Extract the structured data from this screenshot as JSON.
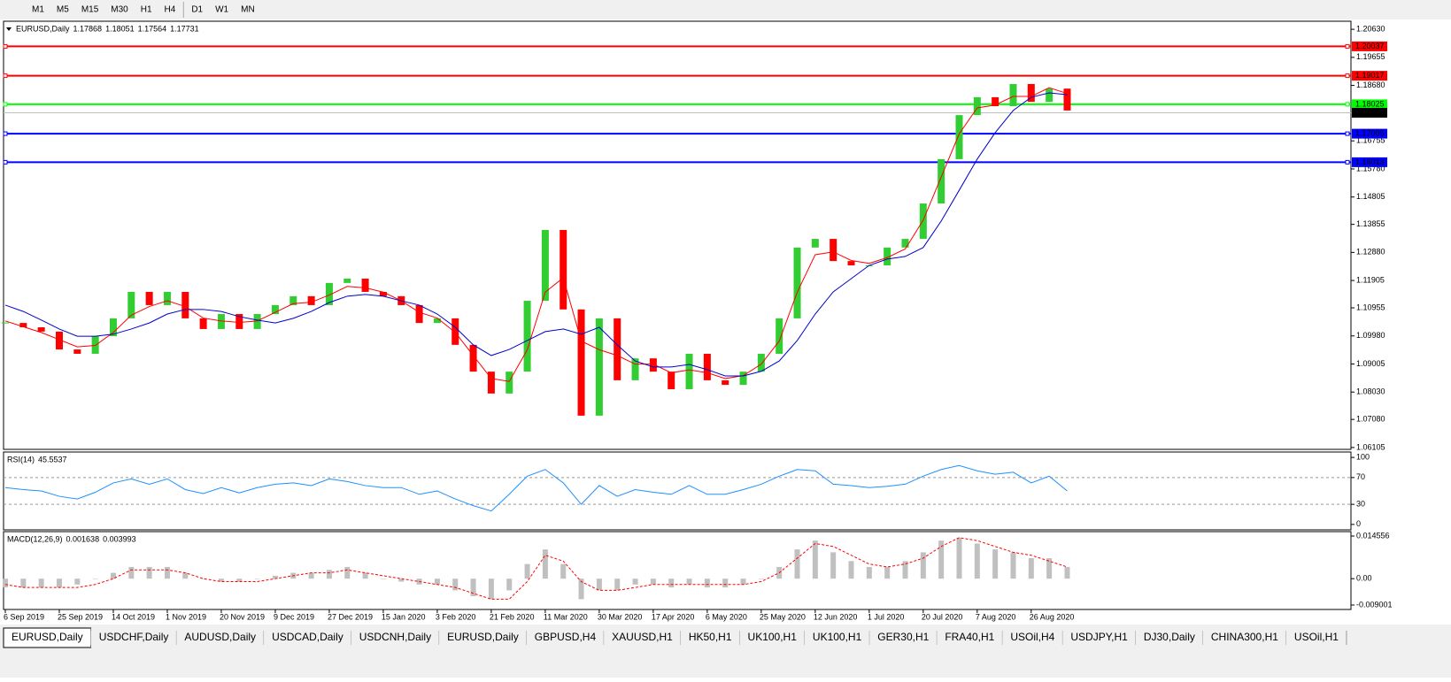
{
  "toolbar": {
    "timeframes": [
      "M1",
      "M5",
      "M15",
      "M30",
      "H1",
      "H4",
      "D1",
      "W1",
      "MN"
    ]
  },
  "chart_data": [
    {
      "type": "candlestick",
      "symbol": "EURUSD,Daily",
      "ohlc": [
        1.17868,
        1.18051,
        1.17564,
        1.17731
      ],
      "categories": [
        "6 Sep 2019",
        null,
        null,
        "25 Sep 2019",
        null,
        null,
        "14 Oct 2019",
        null,
        null,
        "1 Nov 2019",
        null,
        null,
        "20 Nov 2019",
        null,
        null,
        "9 Dec 2019",
        null,
        null,
        "27 Dec 2019",
        null,
        null,
        "15 Jan 2020",
        null,
        null,
        "3 Feb 2020",
        null,
        null,
        "21 Feb 2020",
        null,
        null,
        "11 Mar 2020",
        null,
        null,
        "30 Mar 2020",
        null,
        null,
        "17 Apr 2020",
        null,
        null,
        "6 May 2020",
        null,
        null,
        "25 May 2020",
        null,
        null,
        "12 Jun 2020",
        null,
        null,
        "1 Jul 2020",
        null,
        null,
        "20 Jul 2020",
        null,
        null,
        "7 Aug 2020",
        null,
        null,
        "26 Aug 2020",
        null,
        null
      ],
      "close": [
        1.1043,
        1.1028,
        1.1013,
        1.0951,
        1.0936,
        1.0997,
        1.1059,
        1.1151,
        1.1105,
        1.1151,
        1.1059,
        1.1022,
        1.1074,
        1.1022,
        1.1074,
        1.1105,
        1.1136,
        1.1105,
        1.1182,
        1.1197,
        1.1151,
        1.1136,
        1.1105,
        1.1043,
        1.1059,
        1.0967,
        1.0874,
        1.0798,
        1.0874,
        1.112,
        1.1366,
        1.109,
        1.0721,
        1.1059,
        1.0844,
        1.092,
        1.0874,
        1.0813,
        1.0936,
        1.0844,
        1.0828,
        1.0874,
        1.0936,
        1.1059,
        1.1305,
        1.1335,
        1.1258,
        1.1243,
        1.1243,
        1.1305,
        1.1335,
        1.1458,
        1.1612,
        1.1765,
        1.1827,
        1.1796,
        1.1873,
        1.1811,
        1.1857,
        1.1781
      ],
      "up_color": "#32cd32",
      "down_color": "#ff0000",
      "series": [
        {
          "color": "#ff0000",
          "values": [
            1.105,
            1.103,
            1.101,
            1.0985,
            1.096,
            1.0965,
            1.101,
            1.107,
            1.11,
            1.112,
            1.11,
            1.106,
            1.105,
            1.1045,
            1.105,
            1.108,
            1.111,
            1.1115,
            1.114,
            1.117,
            1.1165,
            1.115,
            1.112,
            1.108,
            1.106,
            1.101,
            1.093,
            1.085,
            1.084,
            1.095,
            1.115,
            1.12,
            1.098,
            1.095,
            1.093,
            1.09,
            1.09,
            1.087,
            1.088,
            1.087,
            1.085,
            1.086,
            1.09,
            1.098,
            1.115,
            1.128,
            1.129,
            1.126,
            1.125,
            1.127,
            1.13,
            1.14,
            1.155,
            1.17,
            1.179,
            1.18,
            1.183,
            1.183,
            1.186,
            1.184
          ]
        },
        {
          "color": "#0000cd",
          "values": [
            1.1105,
            1.1083,
            1.1053,
            1.1022,
            1.0997,
            1.0997,
            1.1004,
            1.1022,
            1.1043,
            1.1074,
            1.109,
            1.109,
            1.1083,
            1.1065,
            1.1053,
            1.1043,
            1.1059,
            1.1083,
            1.1114,
            1.1136,
            1.1142,
            1.1136,
            1.112,
            1.1105,
            1.1074,
            1.1028,
            1.0967,
            1.093,
            1.0951,
            1.0982,
            1.1013,
            1.1022,
            1.1004,
            1.1028,
            1.0967,
            1.0911,
            1.089,
            1.089,
            1.0899,
            1.0881,
            1.0859,
            1.0859,
            1.0875,
            1.0911,
            1.0982,
            1.1074,
            1.1151,
            1.1197,
            1.1243,
            1.1265,
            1.1274,
            1.1305,
            1.1397,
            1.1504,
            1.1612,
            1.1704,
            1.1781,
            1.1827,
            1.1842,
            1.1836
          ]
        }
      ],
      "levels": [
        {
          "value": 1.20037,
          "color": "#ff0000"
        },
        {
          "value": 1.19017,
          "color": "#ff0000"
        },
        {
          "value": 1.18025,
          "color": "#00ff00"
        },
        {
          "value": 1.17005,
          "color": "#0000ff"
        },
        {
          "value": 1.16013,
          "color": "#0000ff"
        }
      ],
      "ylim": [
        1.0604,
        1.2091
      ],
      "yticks": [
        {
          "value": 1.2063,
          "label": "1.20630"
        },
        1.19655,
        {
          "value": 1.1868,
          "label": "1.18680"
        },
        1.16755,
        {
          "value": 1.1578,
          "label": "1.15780"
        },
        1.14805,
        1.13855,
        {
          "value": 1.1288,
          "label": "1.12880"
        },
        1.11905,
        1.10955,
        {
          "value": 1.0998,
          "label": "1.09980"
        },
        1.09005,
        {
          "value": 1.0803,
          "label": "1.08030"
        },
        {
          "value": 1.0708,
          "label": "1.07080"
        },
        1.06105
      ]
    },
    {
      "type": "line",
      "title": "RSI(14)",
      "value": 45.5537,
      "color": "#1e90ff",
      "values": [
        55,
        52,
        50,
        42,
        38,
        48,
        62,
        68,
        60,
        68,
        52,
        46,
        55,
        47,
        55,
        60,
        62,
        58,
        68,
        64,
        58,
        55,
        55,
        45,
        50,
        38,
        28,
        20,
        45,
        72,
        82,
        62,
        30,
        58,
        42,
        52,
        48,
        45,
        58,
        45,
        45,
        52,
        60,
        72,
        82,
        80,
        60,
        58,
        55,
        57,
        60,
        72,
        82,
        88,
        80,
        75,
        78,
        62,
        72,
        50
      ],
      "levels": [
        70,
        30
      ],
      "ylim": [
        -8.1,
        108.1
      ],
      "yticks": [
        100,
        70,
        30,
        0
      ]
    },
    {
      "type": "bar",
      "title": "MACD(12,26,9)",
      "main": 0.001638,
      "signal_value": 0.003993,
      "color": "#c0c0c0",
      "signal_color": "#ff0000",
      "values": [
        -0.003,
        -0.003,
        -0.003,
        -0.003,
        -0.002,
        0,
        0.002,
        0.004,
        0.004,
        0.004,
        0.002,
        0,
        -0.001,
        -0.001,
        0,
        0.001,
        0.002,
        0.002,
        0.003,
        0.004,
        0.002,
        0,
        -0.001,
        -0.002,
        -0.002,
        -0.004,
        -0.006,
        -0.007,
        -0.004,
        0.005,
        0.01,
        0.005,
        -0.007,
        -0.004,
        -0.004,
        -0.002,
        -0.002,
        -0.003,
        -0.002,
        -0.003,
        -0.003,
        -0.002,
        0,
        0.004,
        0.01,
        0.013,
        0.009,
        0.006,
        0.004,
        0.004,
        0.006,
        0.009,
        0.013,
        0.014,
        0.012,
        0.01,
        0.009,
        0.007,
        0.007,
        0.004
      ],
      "signal": [
        -0.002,
        -0.003,
        -0.003,
        -0.003,
        -0.003,
        -0.002,
        0,
        0.003,
        0.003,
        0.003,
        0.002,
        0,
        -0.001,
        -0.001,
        -0.001,
        0,
        0.001,
        0.002,
        0.002,
        0.003,
        0.002,
        0.001,
        0,
        -0.001,
        -0.002,
        -0.003,
        -0.005,
        -0.007,
        -0.007,
        -0.001,
        0.008,
        0.006,
        -0.001,
        -0.004,
        -0.004,
        -0.003,
        -0.002,
        -0.002,
        -0.002,
        -0.002,
        -0.002,
        -0.002,
        -0.001,
        0.002,
        0.007,
        0.012,
        0.011,
        0.008,
        0.005,
        0.004,
        0.005,
        0.007,
        0.011,
        0.014,
        0.013,
        0.011,
        0.009,
        0.008,
        0.006,
        0.004
      ],
      "ylim": [
        -0.01052,
        0.01607
      ],
      "yticks": [
        0.014556,
        {
          "value": 0,
          "label": "0.00"
        },
        -0.009001
      ]
    }
  ],
  "tabs": [
    "EURUSD,Daily",
    "USDCHF,Daily",
    "AUDUSD,Daily",
    "USDCAD,Daily",
    "USDCNH,Daily",
    "EURUSD,Daily",
    "GBPUSD,H4",
    "XAUUSD,H1",
    "HK50,H1",
    "UK100,H1",
    "UK100,H1",
    "GER30,H1",
    "FRA40,H1",
    "USOil,H4",
    "USDJPY,H1",
    "DJ30,Daily",
    "CHINA300,H1",
    "USOil,H1"
  ],
  "active_tab": 0
}
